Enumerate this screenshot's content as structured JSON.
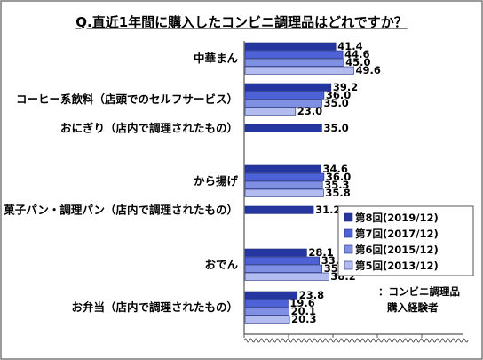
{
  "chart_data": {
    "type": "bar",
    "orientation": "horizontal",
    "title": "Q.直近1年間に購入したコンビニ調理品はどれですか？",
    "categories": [
      "中華まん",
      "コーヒー系飲料（店頭でのセルフサービス）",
      "おにぎり（店内で調理されたもの）",
      "から揚げ",
      "菓子パン・調理パン（店内で調理されたもの）",
      "おでん",
      "お弁当（店内で調理されたもの）"
    ],
    "series": [
      {
        "name": "第8回(2019/12)",
        "color": "#2636a0",
        "values": [
          41.4,
          39.2,
          35.0,
          34.6,
          31.2,
          28.1,
          23.8
        ]
      },
      {
        "name": "第7回(2017/12)",
        "color": "#4d62d6",
        "values": [
          44.6,
          36.0,
          null,
          36.0,
          null,
          33.9,
          19.6
        ]
      },
      {
        "name": "第6回(2015/12)",
        "color": "#7f90e2",
        "values": [
          45.0,
          35.0,
          null,
          35.3,
          null,
          35.1,
          20.1
        ]
      },
      {
        "name": "第5回(2013/12)",
        "color": "#b3bcf0",
        "values": [
          49.6,
          23.0,
          null,
          35.8,
          null,
          38.2,
          20.3
        ]
      }
    ],
    "xlim": [
      0,
      100
    ],
    "legend_position": "right",
    "annotation": {
      "line1": "：コンビニ調理品",
      "line2": "購入経験者"
    }
  }
}
